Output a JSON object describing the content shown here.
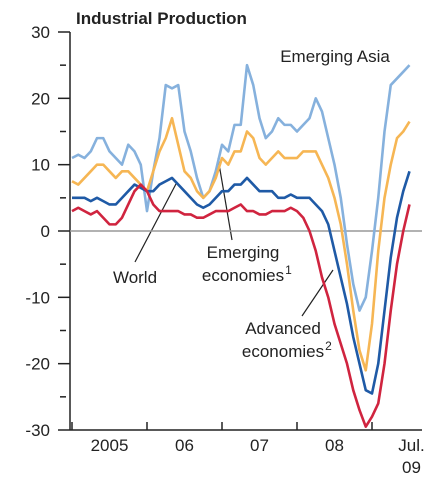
{
  "chart_data": {
    "type": "line",
    "title": "Industrial Production",
    "categories": [
      null,
      null,
      null,
      null,
      null,
      null,
      "2005",
      null,
      null,
      null,
      null,
      null,
      null,
      null,
      null,
      null,
      null,
      null,
      "06",
      null,
      null,
      null,
      null,
      null,
      null,
      null,
      null,
      null,
      null,
      null,
      "07",
      null,
      null,
      null,
      null,
      null,
      null,
      null,
      null,
      null,
      null,
      null,
      "08",
      null,
      null,
      null,
      null,
      null,
      null,
      null,
      null,
      null,
      null,
      null,
      "Jul. 09"
    ],
    "ylim": [
      -30,
      30
    ],
    "yticks": [
      -30,
      -20,
      -10,
      0,
      10,
      20,
      30
    ],
    "series": [
      {
        "label": [
          "Emerging Asia"
        ],
        "color": "#86b1dd",
        "values": [
          11,
          11.5,
          11,
          12,
          14,
          14,
          12,
          11,
          10,
          13,
          12,
          10,
          3,
          9,
          14,
          22,
          21.5,
          22,
          15,
          12,
          8,
          5,
          6,
          9,
          13,
          12,
          16,
          16,
          25,
          22,
          17,
          14,
          15,
          17,
          16,
          16,
          15,
          16,
          17,
          20,
          18,
          14,
          10,
          5,
          -2,
          -8,
          -12,
          -10,
          -3,
          5,
          15,
          22,
          23,
          24,
          25
        ]
      },
      {
        "label": [
          "Emerging",
          "economies"
        ],
        "note": "1",
        "color": "#f6b654",
        "values": [
          7.5,
          7,
          8,
          9,
          10,
          10,
          9,
          8,
          9,
          9,
          8,
          7,
          6,
          9,
          12,
          14,
          17,
          13,
          9,
          8,
          6,
          5,
          6,
          8,
          11,
          10,
          12,
          12,
          15,
          14,
          11,
          10,
          11,
          12,
          11,
          11,
          11,
          12,
          12,
          12,
          10,
          8,
          5,
          1,
          -5,
          -12,
          -18,
          -21,
          -14,
          -3,
          5,
          10,
          14,
          15,
          16.5
        ]
      },
      {
        "label": [
          "World"
        ],
        "color": "#1f5aa6",
        "values": [
          5,
          5,
          5,
          4.5,
          5,
          4.5,
          4,
          4,
          5,
          6,
          7,
          6.5,
          6,
          6,
          7,
          7.5,
          8,
          7,
          6,
          5,
          4,
          3.5,
          4,
          5,
          6,
          6,
          7,
          7,
          8,
          7,
          6,
          6,
          6,
          5,
          5,
          5.5,
          5,
          5,
          5,
          4,
          3,
          1,
          -3,
          -7,
          -11,
          -16,
          -20,
          -24,
          -24.5,
          -20,
          -12,
          -4,
          2,
          6,
          9
        ]
      },
      {
        "label": [
          "Advanced",
          "economies"
        ],
        "note": "2",
        "color": "#d0243f",
        "values": [
          3,
          3.5,
          3,
          2.5,
          3,
          2,
          1,
          1,
          2,
          4,
          6,
          7,
          6,
          4,
          3,
          3,
          3,
          3,
          2.5,
          2.5,
          2,
          2,
          2.5,
          3,
          3,
          3,
          3.5,
          4,
          3,
          3,
          2.5,
          2.5,
          3,
          3,
          3,
          3.5,
          3,
          2,
          0,
          -3,
          -7,
          -10,
          -14,
          -17,
          -20,
          -24,
          -27,
          -29.5,
          -28,
          -26,
          -20,
          -12,
          -5,
          0,
          4
        ]
      }
    ]
  }
}
